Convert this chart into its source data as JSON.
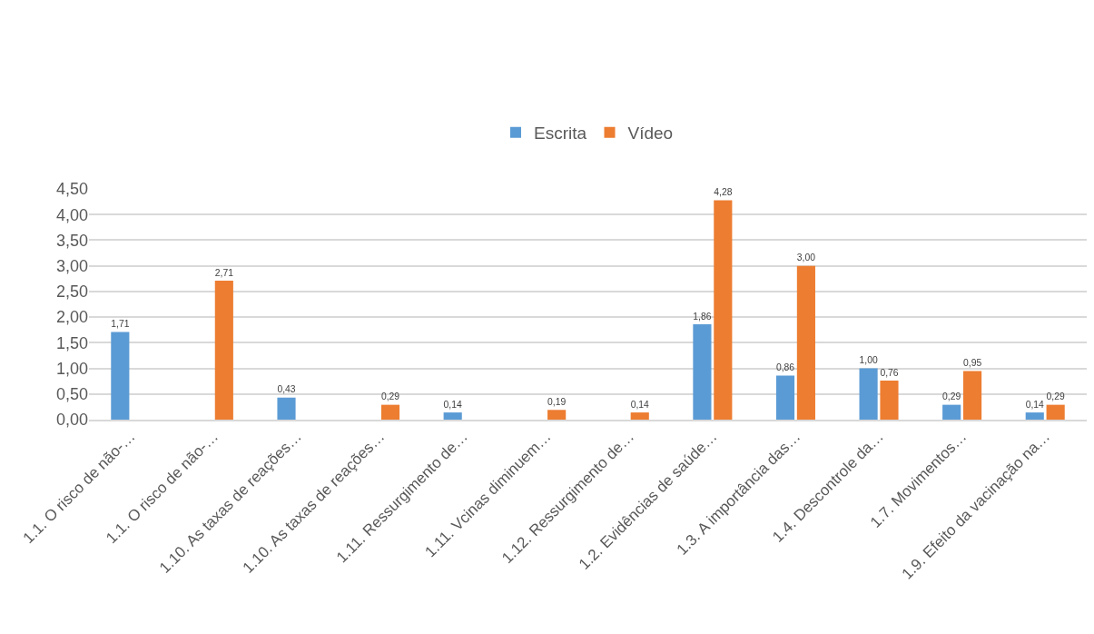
{
  "chart_data": {
    "type": "bar",
    "categories": [
      "1.1. O risco de não-…",
      "1.1. O risco de não-…",
      "1.10. As taxas de reações…",
      "1.10. As taxas de reações…",
      "1.11. Ressurgimento de…",
      "1.11. Vcinas diminuem…",
      "1.12. Ressurgimento de…",
      "1.2. Evidências de saúde…",
      "1.3. A importância das…",
      "1.4. Descontrole da…",
      "1.7. Movimentos…",
      "1.9. Efeito da vacinação na…"
    ],
    "series": [
      {
        "name": "Escrita",
        "color": "#5b9bd5",
        "values": [
          1.71,
          null,
          0.43,
          null,
          0.14,
          null,
          null,
          1.86,
          0.86,
          1.0,
          0.29,
          0.14
        ],
        "value_labels": [
          "1,71",
          null,
          "0,43",
          null,
          "0,14",
          null,
          null,
          "1,86",
          "0,86",
          "1,00",
          "0,29",
          "0,14"
        ]
      },
      {
        "name": "Vídeo",
        "color": "#ed7d31",
        "values": [
          null,
          2.71,
          null,
          0.29,
          null,
          0.19,
          0.14,
          4.28,
          3.0,
          0.76,
          0.95,
          0.29
        ],
        "value_labels": [
          null,
          "2,71",
          null,
          "0,29",
          null,
          "0,19",
          "0,14",
          "4,28",
          "3,00",
          "0,76",
          "0,95",
          "0,29"
        ]
      }
    ],
    "ylim": [
      0,
      4.5
    ],
    "yticks": [
      {
        "value": 0,
        "label": "0,00"
      },
      {
        "value": 0.5,
        "label": "0,50"
      },
      {
        "value": 1,
        "label": "1,00"
      },
      {
        "value": 1.5,
        "label": "1,50"
      },
      {
        "value": 2,
        "label": "2,00"
      },
      {
        "value": 2.5,
        "label": "2,50"
      },
      {
        "value": 3,
        "label": "3,00"
      },
      {
        "value": 3.5,
        "label": "3,50"
      },
      {
        "value": 4,
        "label": "4,00"
      },
      {
        "value": 4.5,
        "label": "4,50"
      }
    ],
    "grid": "y",
    "legend": "top"
  }
}
